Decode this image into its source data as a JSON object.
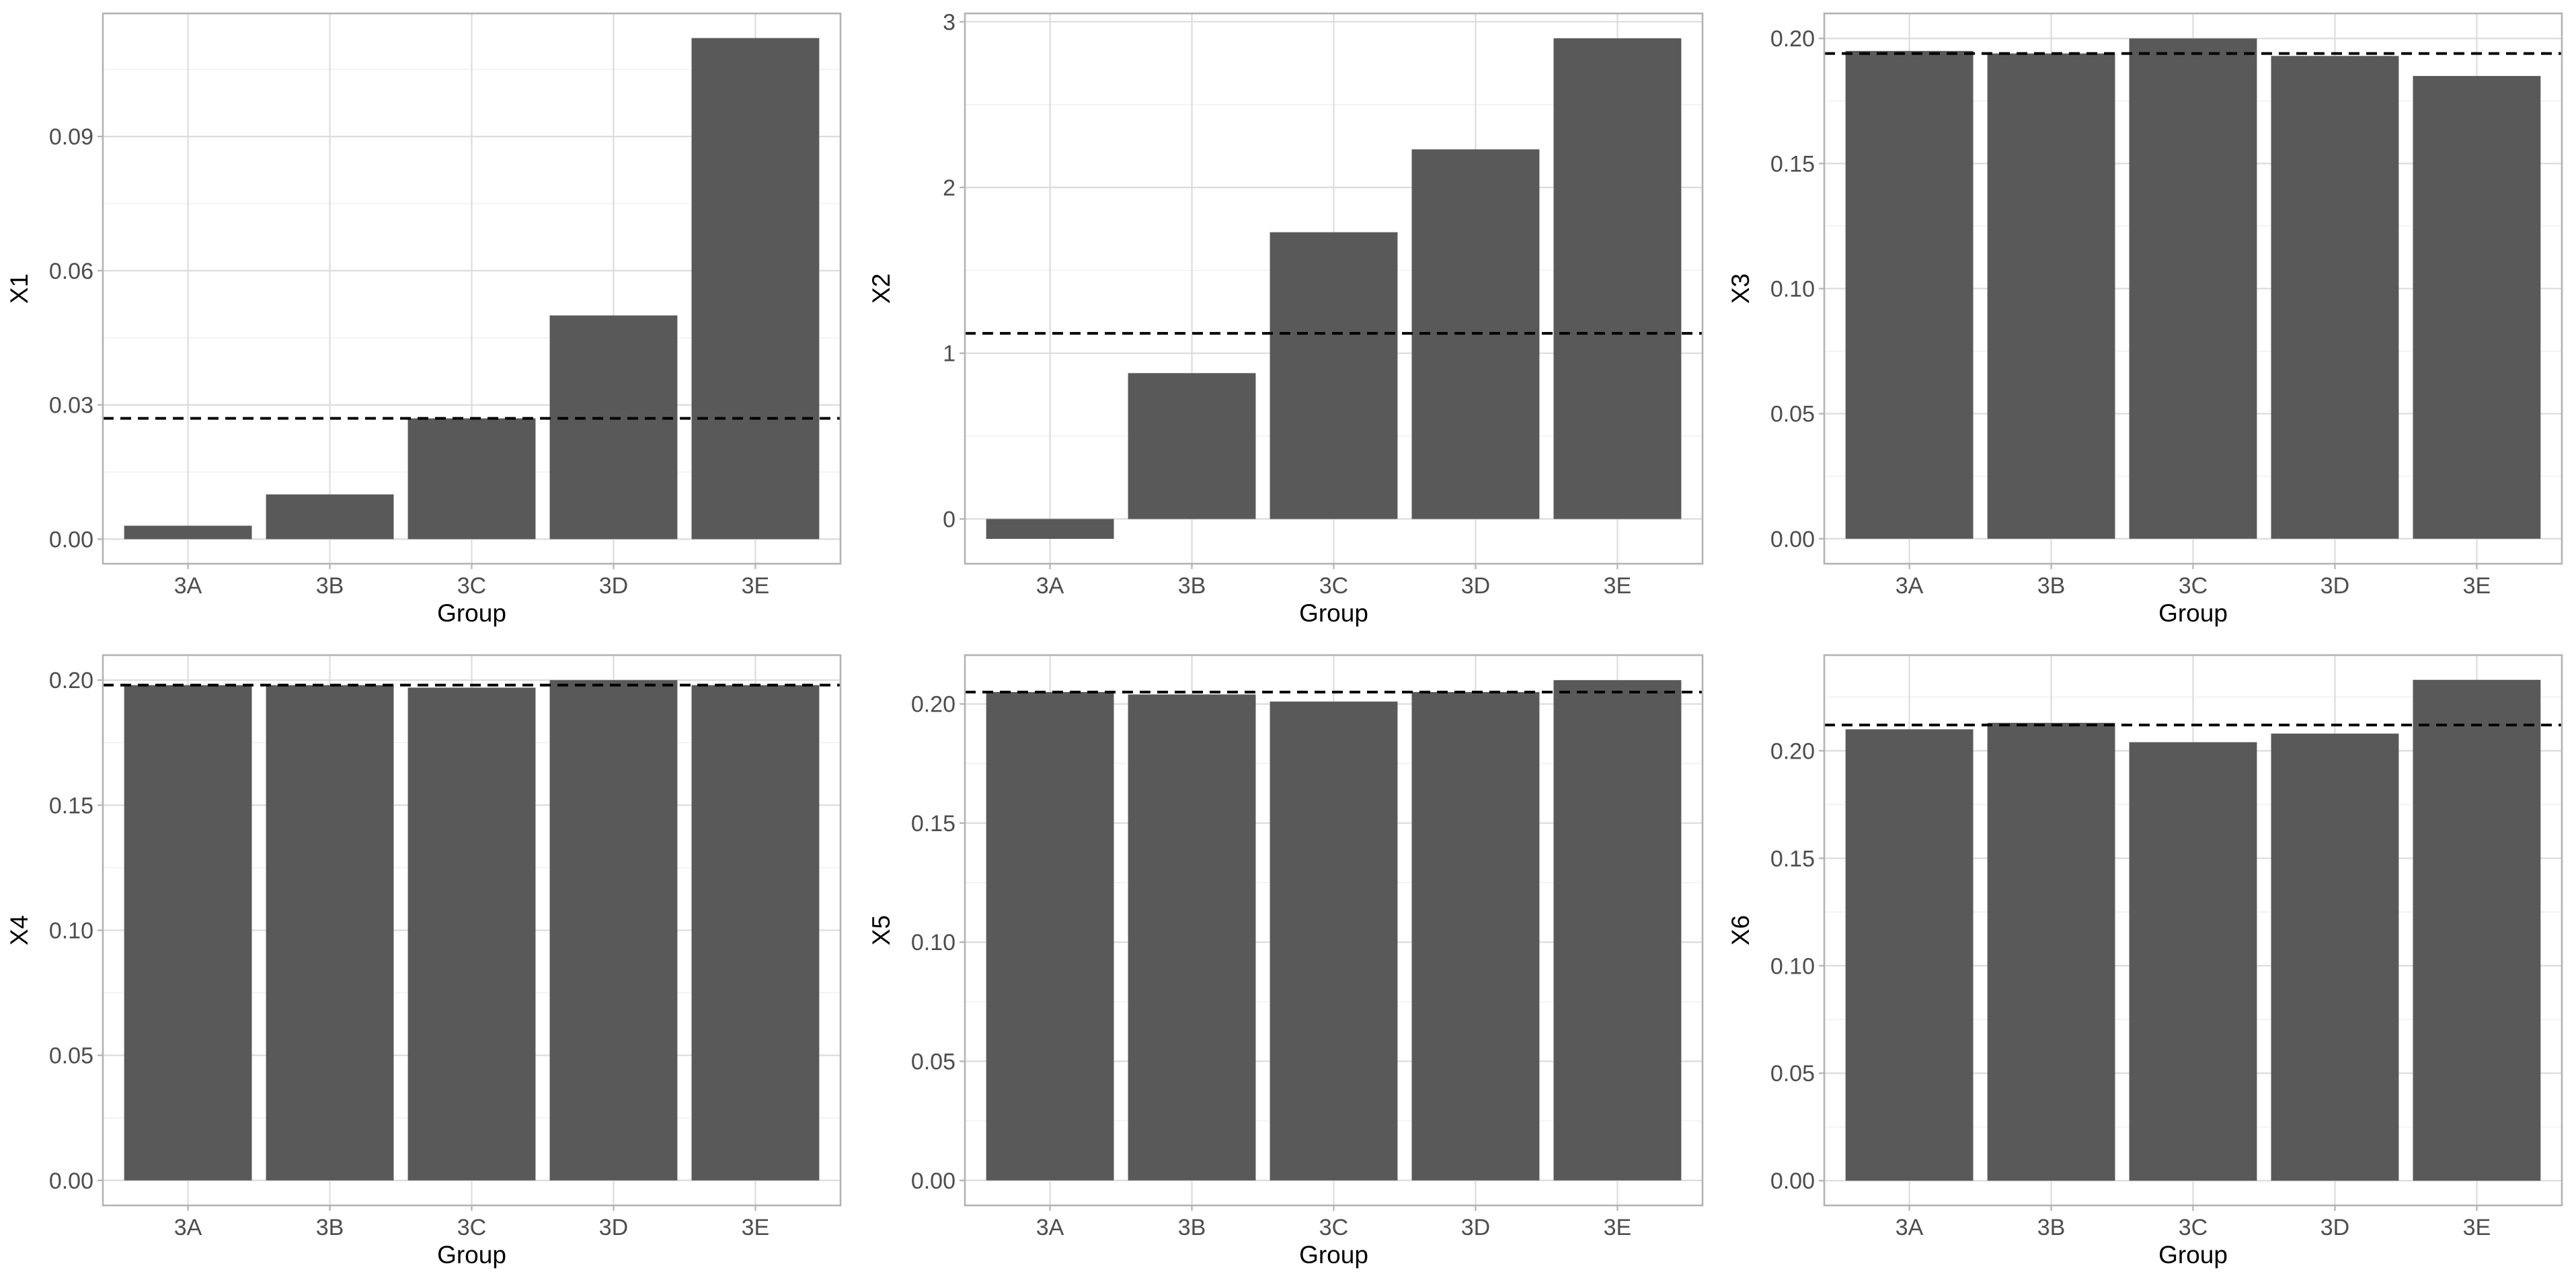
{
  "chart_data": [
    {
      "type": "bar",
      "categories": [
        "3A",
        "3B",
        "3C",
        "3D",
        "3E"
      ],
      "values": [
        0.003,
        0.01,
        0.027,
        0.05,
        0.112
      ],
      "reference_line": 0.027,
      "xlabel": "Group",
      "ylabel": "X1",
      "ylim": [
        -0.0055,
        0.1175
      ],
      "yticks": [
        0.0,
        0.03,
        0.06,
        0.09
      ],
      "ytick_labels": [
        "0.00",
        "0.03",
        "0.06",
        "0.09"
      ]
    },
    {
      "type": "bar",
      "categories": [
        "3A",
        "3B",
        "3C",
        "3D",
        "3E"
      ],
      "values": [
        -0.12,
        0.88,
        1.73,
        2.23,
        2.9
      ],
      "reference_line": 1.12,
      "xlabel": "Group",
      "ylabel": "X2",
      "ylim": [
        -0.27,
        3.05
      ],
      "yticks": [
        0,
        1,
        2,
        3
      ],
      "ytick_labels": [
        "0",
        "1",
        "2",
        "3"
      ]
    },
    {
      "type": "bar",
      "categories": [
        "3A",
        "3B",
        "3C",
        "3D",
        "3E"
      ],
      "values": [
        0.195,
        0.194,
        0.2,
        0.193,
        0.185
      ],
      "reference_line": 0.194,
      "xlabel": "Group",
      "ylabel": "X3",
      "ylim": [
        -0.01,
        0.21
      ],
      "yticks": [
        0.0,
        0.05,
        0.1,
        0.15,
        0.2
      ],
      "ytick_labels": [
        "0.00",
        "0.05",
        "0.10",
        "0.15",
        "0.20"
      ]
    },
    {
      "type": "bar",
      "categories": [
        "3A",
        "3B",
        "3C",
        "3D",
        "3E"
      ],
      "values": [
        0.198,
        0.198,
        0.197,
        0.2,
        0.198
      ],
      "reference_line": 0.198,
      "xlabel": "Group",
      "ylabel": "X4",
      "ylim": [
        -0.01,
        0.21
      ],
      "yticks": [
        0.0,
        0.05,
        0.1,
        0.15,
        0.2
      ],
      "ytick_labels": [
        "0.00",
        "0.05",
        "0.10",
        "0.15",
        "0.20"
      ]
    },
    {
      "type": "bar",
      "categories": [
        "3A",
        "3B",
        "3C",
        "3D",
        "3E"
      ],
      "values": [
        0.205,
        0.204,
        0.201,
        0.205,
        0.21
      ],
      "reference_line": 0.205,
      "xlabel": "Group",
      "ylabel": "X5",
      "ylim": [
        -0.0105,
        0.2205
      ],
      "yticks": [
        0.0,
        0.05,
        0.1,
        0.15,
        0.2
      ],
      "ytick_labels": [
        "0.00",
        "0.05",
        "0.10",
        "0.15",
        "0.20"
      ]
    },
    {
      "type": "bar",
      "categories": [
        "3A",
        "3B",
        "3C",
        "3D",
        "3E"
      ],
      "values": [
        0.21,
        0.213,
        0.204,
        0.208,
        0.233
      ],
      "reference_line": 0.212,
      "xlabel": "Group",
      "ylabel": "X6",
      "ylim": [
        -0.0115,
        0.2445
      ],
      "yticks": [
        0.0,
        0.05,
        0.1,
        0.15,
        0.2
      ],
      "ytick_labels": [
        "0.00",
        "0.05",
        "0.10",
        "0.15",
        "0.20"
      ]
    }
  ],
  "colors": {
    "bar": "#595959",
    "reference_line": "#000000",
    "grid_major": "#dcdcdc",
    "grid_minor": "#efefef",
    "panel_border": "#b3b3b3"
  }
}
